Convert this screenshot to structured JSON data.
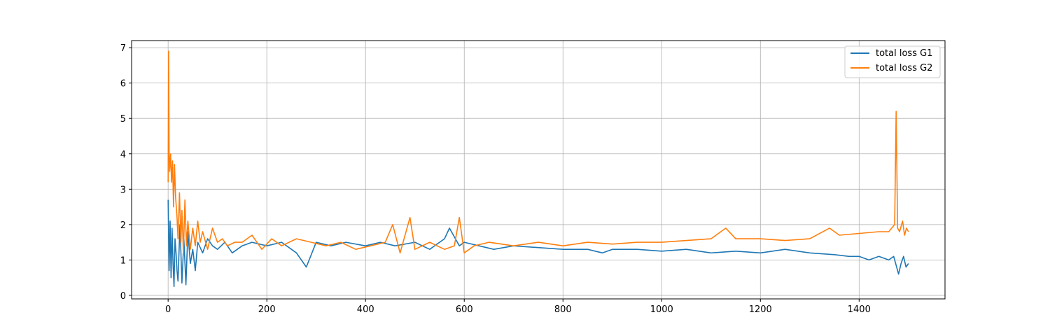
{
  "chart_data": {
    "type": "line",
    "title": "",
    "xlabel": "",
    "ylabel": "",
    "xlim": [
      -74,
      1574
    ],
    "ylim": [
      -0.1,
      7.2
    ],
    "xticks": [
      0,
      200,
      400,
      600,
      800,
      1000,
      1200,
      1400
    ],
    "yticks": [
      0,
      1,
      2,
      3,
      4,
      5,
      6,
      7
    ],
    "grid": true,
    "legend_position": "top-right",
    "series": [
      {
        "name": "total loss G1",
        "color": "#1f77b4",
        "x": [
          0,
          2,
          4,
          6,
          8,
          10,
          12,
          14,
          16,
          18,
          20,
          24,
          28,
          32,
          36,
          40,
          45,
          50,
          55,
          60,
          70,
          80,
          90,
          100,
          115,
          130,
          150,
          170,
          200,
          230,
          260,
          280,
          300,
          330,
          360,
          400,
          430,
          460,
          500,
          530,
          560,
          570,
          590,
          600,
          630,
          660,
          700,
          750,
          800,
          850,
          880,
          900,
          950,
          1000,
          1050,
          1100,
          1150,
          1200,
          1250,
          1300,
          1350,
          1380,
          1400,
          1420,
          1440,
          1460,
          1470,
          1480,
          1485,
          1490,
          1495,
          1500
        ],
        "values": [
          2.7,
          0.7,
          2.1,
          0.5,
          1.9,
          0.9,
          0.25,
          1.6,
          1.2,
          0.7,
          0.4,
          2.0,
          0.35,
          1.6,
          0.3,
          1.8,
          0.9,
          1.3,
          0.7,
          1.5,
          1.2,
          1.6,
          1.4,
          1.3,
          1.5,
          1.2,
          1.4,
          1.5,
          1.4,
          1.5,
          1.2,
          0.8,
          1.5,
          1.4,
          1.5,
          1.4,
          1.5,
          1.4,
          1.5,
          1.3,
          1.6,
          1.9,
          1.4,
          1.5,
          1.4,
          1.3,
          1.4,
          1.35,
          1.3,
          1.3,
          1.2,
          1.3,
          1.3,
          1.25,
          1.3,
          1.2,
          1.25,
          1.2,
          1.3,
          1.2,
          1.15,
          1.1,
          1.1,
          1.0,
          1.1,
          1.0,
          1.1,
          0.6,
          0.9,
          1.1,
          0.8,
          0.9
        ]
      },
      {
        "name": "total loss G2",
        "color": "#ff7f0e",
        "x": [
          0,
          1,
          2,
          3,
          5,
          7,
          9,
          11,
          13,
          15,
          18,
          20,
          23,
          26,
          28,
          31,
          34,
          37,
          40,
          45,
          50,
          55,
          60,
          65,
          70,
          80,
          90,
          100,
          110,
          120,
          135,
          150,
          170,
          190,
          210,
          230,
          260,
          290,
          320,
          350,
          380,
          410,
          440,
          455,
          470,
          490,
          500,
          530,
          560,
          580,
          590,
          600,
          620,
          650,
          700,
          750,
          800,
          850,
          900,
          950,
          1000,
          1050,
          1100,
          1130,
          1150,
          1200,
          1250,
          1300,
          1340,
          1360,
          1400,
          1440,
          1460,
          1472,
          1475,
          1478,
          1482,
          1488,
          1492,
          1496,
          1500
        ],
        "values": [
          3.2,
          6.9,
          4.0,
          3.5,
          4.0,
          3.2,
          3.8,
          2.5,
          3.7,
          2.8,
          2.2,
          1.6,
          2.9,
          1.5,
          2.4,
          1.2,
          2.7,
          1.4,
          2.1,
          1.3,
          1.9,
          1.4,
          2.1,
          1.5,
          1.8,
          1.3,
          1.9,
          1.5,
          1.6,
          1.4,
          1.5,
          1.5,
          1.7,
          1.3,
          1.6,
          1.4,
          1.6,
          1.5,
          1.4,
          1.5,
          1.3,
          1.4,
          1.5,
          2.0,
          1.2,
          2.2,
          1.3,
          1.5,
          1.3,
          1.4,
          2.2,
          1.2,
          1.4,
          1.5,
          1.4,
          1.5,
          1.4,
          1.5,
          1.45,
          1.5,
          1.5,
          1.55,
          1.6,
          1.9,
          1.6,
          1.6,
          1.55,
          1.6,
          1.9,
          1.7,
          1.75,
          1.8,
          1.8,
          2.0,
          5.2,
          1.9,
          1.8,
          2.1,
          1.7,
          1.9,
          1.8
        ]
      }
    ]
  }
}
